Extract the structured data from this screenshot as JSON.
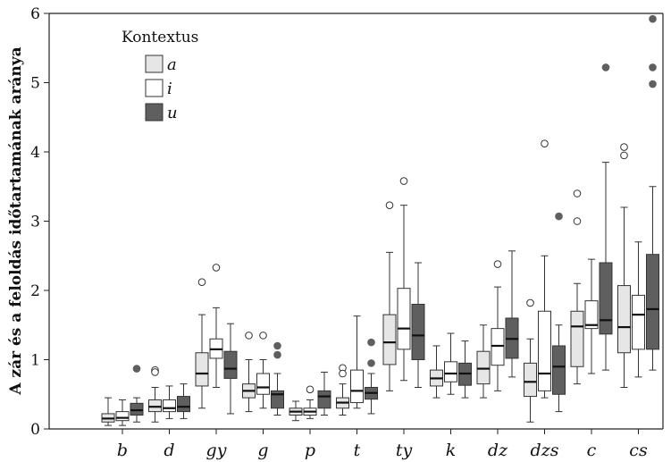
{
  "chart_data": {
    "type": "box",
    "title": "",
    "xlabel": "",
    "ylabel": "A zár és a feloldás időtartamának aránya",
    "ylim": [
      0,
      6
    ],
    "yticks": [
      0,
      1,
      2,
      3,
      4,
      5,
      6
    ],
    "categories": [
      "b",
      "d",
      "gy",
      "g",
      "p",
      "t",
      "ty",
      "k",
      "dz",
      "dzs",
      "c",
      "cs"
    ],
    "legend": {
      "title": "Kontextus",
      "placement": "top-left",
      "entries": [
        "a",
        "i",
        "u"
      ]
    },
    "series": [
      {
        "name": "a",
        "color": "#e6e6e6",
        "boxes": [
          {
            "min": 0.05,
            "q1": 0.1,
            "median": 0.15,
            "q3": 0.22,
            "max": 0.45,
            "outliers": []
          },
          {
            "min": 0.1,
            "q1": 0.25,
            "median": 0.32,
            "q3": 0.42,
            "max": 0.6,
            "outliers": [
              0.85,
              0.82
            ]
          },
          {
            "min": 0.3,
            "q1": 0.62,
            "median": 0.8,
            "q3": 1.1,
            "max": 1.65,
            "outliers": [
              2.12
            ]
          },
          {
            "min": 0.25,
            "q1": 0.45,
            "median": 0.55,
            "q3": 0.65,
            "max": 1.0,
            "outliers": [
              1.35
            ]
          },
          {
            "min": 0.12,
            "q1": 0.2,
            "median": 0.25,
            "q3": 0.3,
            "max": 0.4,
            "outliers": []
          },
          {
            "min": 0.2,
            "q1": 0.3,
            "median": 0.38,
            "q3": 0.45,
            "max": 0.65,
            "outliers": [
              0.88,
              0.8
            ]
          },
          {
            "min": 0.55,
            "q1": 0.93,
            "median": 1.25,
            "q3": 1.65,
            "max": 2.55,
            "outliers": [
              3.23
            ]
          },
          {
            "min": 0.45,
            "q1": 0.62,
            "median": 0.73,
            "q3": 0.85,
            "max": 1.2,
            "outliers": []
          },
          {
            "min": 0.45,
            "q1": 0.65,
            "median": 0.87,
            "q3": 1.12,
            "max": 1.5,
            "outliers": []
          },
          {
            "min": 0.1,
            "q1": 0.47,
            "median": 0.68,
            "q3": 0.95,
            "max": 1.3,
            "outliers": [
              1.82
            ]
          },
          {
            "min": 0.65,
            "q1": 0.9,
            "median": 1.48,
            "q3": 1.7,
            "max": 2.1,
            "outliers": [
              3.0,
              3.4
            ]
          },
          {
            "min": 0.6,
            "q1": 1.1,
            "median": 1.47,
            "q3": 2.07,
            "max": 3.2,
            "outliers": [
              3.95,
              4.07
            ]
          }
        ]
      },
      {
        "name": "i",
        "color": "#ffffff",
        "boxes": [
          {
            "min": 0.05,
            "q1": 0.12,
            "median": 0.16,
            "q3": 0.25,
            "max": 0.42,
            "outliers": []
          },
          {
            "min": 0.15,
            "q1": 0.25,
            "median": 0.3,
            "q3": 0.42,
            "max": 0.62,
            "outliers": []
          },
          {
            "min": 0.6,
            "q1": 1.02,
            "median": 1.15,
            "q3": 1.3,
            "max": 1.75,
            "outliers": [
              2.33
            ]
          },
          {
            "min": 0.3,
            "q1": 0.5,
            "median": 0.6,
            "q3": 0.8,
            "max": 1.0,
            "outliers": [
              1.35
            ]
          },
          {
            "min": 0.15,
            "q1": 0.2,
            "median": 0.25,
            "q3": 0.3,
            "max": 0.42,
            "outliers": [
              0.57
            ]
          },
          {
            "min": 0.3,
            "q1": 0.38,
            "median": 0.55,
            "q3": 0.85,
            "max": 1.63,
            "outliers": []
          },
          {
            "min": 0.7,
            "q1": 1.15,
            "median": 1.45,
            "q3": 2.03,
            "max": 3.23,
            "outliers": [
              3.58
            ]
          },
          {
            "min": 0.5,
            "q1": 0.68,
            "median": 0.8,
            "q3": 0.97,
            "max": 1.38,
            "outliers": []
          },
          {
            "min": 0.55,
            "q1": 0.92,
            "median": 1.2,
            "q3": 1.45,
            "max": 2.05,
            "outliers": [
              2.38
            ]
          },
          {
            "min": 0.45,
            "q1": 0.55,
            "median": 0.8,
            "q3": 1.7,
            "max": 2.5,
            "outliers": [
              4.12
            ]
          },
          {
            "min": 0.8,
            "q1": 1.45,
            "median": 1.5,
            "q3": 1.85,
            "max": 2.45,
            "outliers": []
          },
          {
            "min": 0.75,
            "q1": 1.15,
            "median": 1.65,
            "q3": 1.93,
            "max": 2.7,
            "outliers": []
          }
        ]
      },
      {
        "name": "u",
        "color": "#5f5f5f",
        "boxes": [
          {
            "min": 0.1,
            "q1": 0.2,
            "median": 0.27,
            "q3": 0.37,
            "max": 0.45,
            "outliers": [
              0.87
            ]
          },
          {
            "min": 0.15,
            "q1": 0.25,
            "median": 0.32,
            "q3": 0.47,
            "max": 0.65,
            "outliers": []
          },
          {
            "min": 0.22,
            "q1": 0.73,
            "median": 0.87,
            "q3": 1.12,
            "max": 1.52,
            "outliers": []
          },
          {
            "min": 0.2,
            "q1": 0.3,
            "median": 0.5,
            "q3": 0.55,
            "max": 0.8,
            "outliers": [
              1.2,
              1.07
            ]
          },
          {
            "min": 0.2,
            "q1": 0.3,
            "median": 0.47,
            "q3": 0.55,
            "max": 0.82,
            "outliers": []
          },
          {
            "min": 0.22,
            "q1": 0.43,
            "median": 0.52,
            "q3": 0.6,
            "max": 0.8,
            "outliers": [
              1.25,
              0.95
            ]
          },
          {
            "min": 0.6,
            "q1": 1.0,
            "median": 1.35,
            "q3": 1.8,
            "max": 2.4,
            "outliers": []
          },
          {
            "min": 0.45,
            "q1": 0.63,
            "median": 0.8,
            "q3": 0.95,
            "max": 1.27,
            "outliers": []
          },
          {
            "min": 0.75,
            "q1": 1.02,
            "median": 1.3,
            "q3": 1.6,
            "max": 2.57,
            "outliers": []
          },
          {
            "min": 0.25,
            "q1": 0.5,
            "median": 0.9,
            "q3": 1.2,
            "max": 1.5,
            "outliers": [
              3.07
            ]
          },
          {
            "min": 0.85,
            "q1": 1.37,
            "median": 1.57,
            "q3": 2.4,
            "max": 3.85,
            "outliers": [
              5.22
            ]
          },
          {
            "min": 0.85,
            "q1": 1.15,
            "median": 1.73,
            "q3": 2.52,
            "max": 3.5,
            "outliers": [
              4.98,
              5.22,
              5.92
            ]
          }
        ]
      }
    ]
  }
}
